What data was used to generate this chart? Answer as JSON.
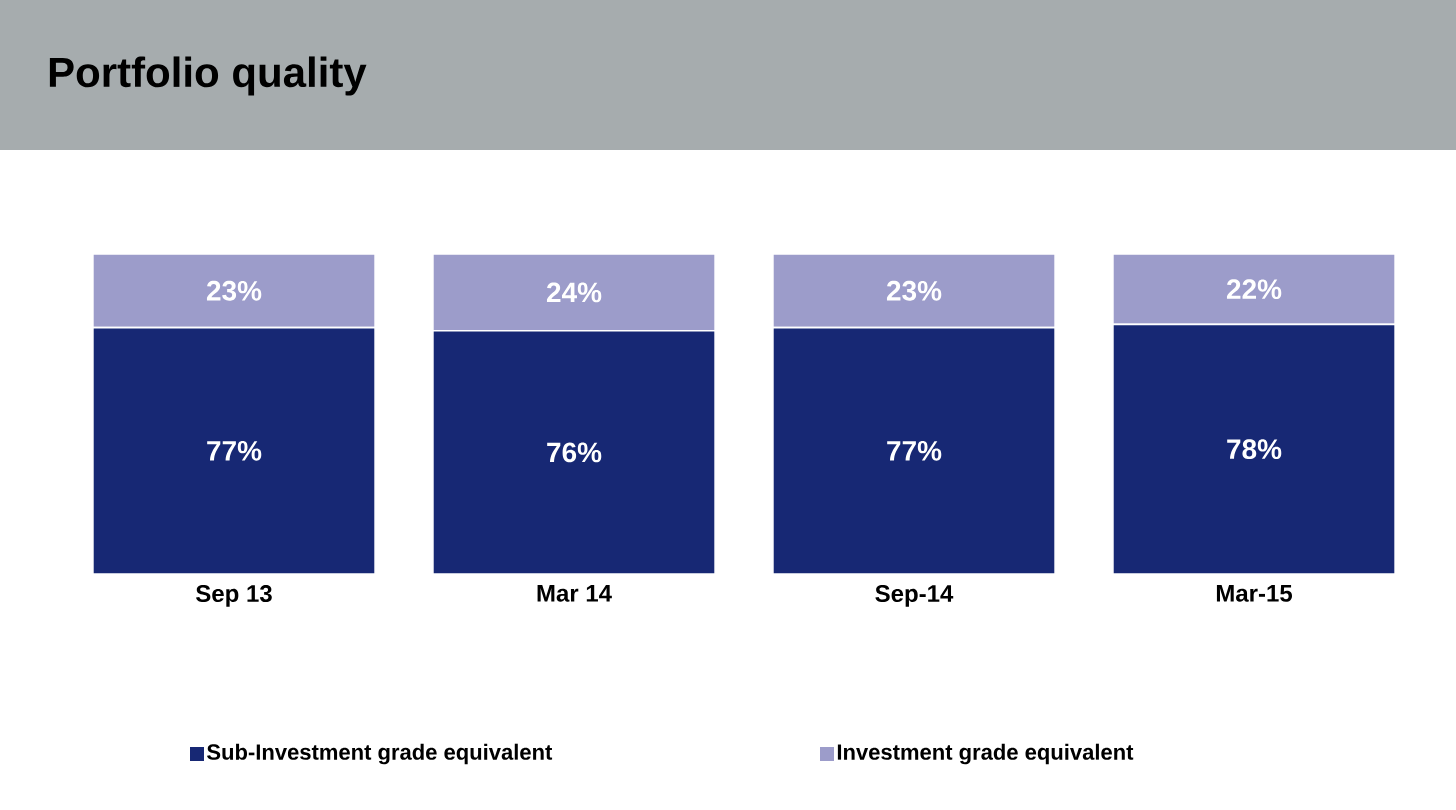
{
  "chart_data": {
    "type": "bar",
    "title": "Portfolio quality",
    "stacked": true,
    "legend": "bottom",
    "categories": [
      "Sep 13",
      "Mar 14",
      "Sep-14",
      "Mar-15"
    ],
    "series": [
      {
        "name": "Sub-Investment grade equivalent",
        "color": "#172874",
        "values": [
          77,
          76,
          77,
          78
        ],
        "value_labels": [
          "77%",
          "76%",
          "77%",
          "78%"
        ]
      },
      {
        "name": "Investment grade equivalent",
        "color": "#9c9cca",
        "values": [
          23,
          24,
          23,
          22
        ],
        "value_labels": [
          "23%",
          "24%",
          "23%",
          "22%"
        ]
      }
    ]
  }
}
